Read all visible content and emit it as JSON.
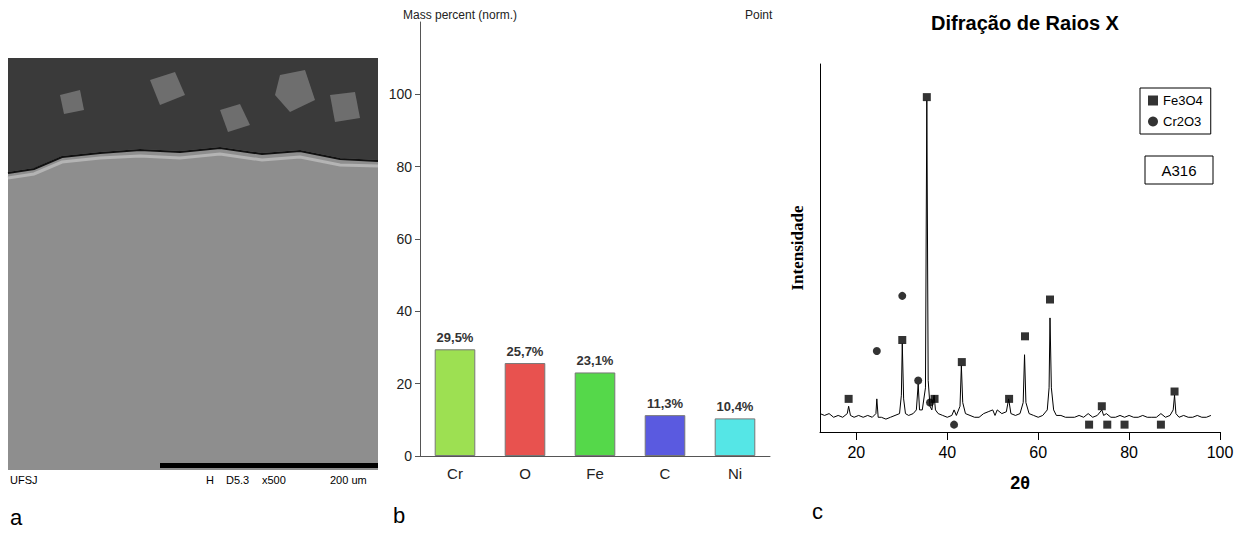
{
  "micrograph": {
    "panel_label": "a",
    "info": [
      "UFSJ",
      "H",
      "D5.3",
      "x500",
      "200 um"
    ]
  },
  "chart_data": [
    {
      "type": "bar",
      "panel_label": "b",
      "title": "Mass percent (norm.)",
      "subtitle": "Point",
      "categories": [
        "Cr",
        "O",
        "Fe",
        "C",
        "Ni"
      ],
      "values": [
        29.5,
        25.7,
        23.1,
        11.3,
        10.4
      ],
      "value_labels": [
        "29,5%",
        "25,7%",
        "23,1%",
        "11,3%",
        "10,4%"
      ],
      "colors": [
        "#9de052",
        "#e8524f",
        "#55d84a",
        "#5a5ae0",
        "#55e6e6"
      ],
      "ylim": [
        0,
        120
      ],
      "yticks": [
        0,
        20,
        40,
        60,
        80,
        100
      ],
      "data_labels": true
    },
    {
      "type": "line",
      "panel_label": "c",
      "title": "Difração de Raios X",
      "x_label": "2θ",
      "y_label": "Intensidade",
      "annotation": "A316",
      "legend": "upper right",
      "tick_labels": "x",
      "xlim": [
        12,
        100
      ],
      "xticks": [
        20,
        40,
        60,
        80,
        100
      ],
      "ylim": [
        0,
        100
      ],
      "series": [
        {
          "type": "line",
          "color": "#000000",
          "x": [
            12,
            13,
            14,
            15,
            16,
            17,
            18,
            18.3,
            18.7,
            19.5,
            20.5,
            21.5,
            22.5,
            23.5,
            24.3,
            24.5,
            24.8,
            25.5,
            26.5,
            27.5,
            28.5,
            29.5,
            29.9,
            30.1,
            30.4,
            30.8,
            31.5,
            32.5,
            33.2,
            33.6,
            33.9,
            34.5,
            35.2,
            35.5,
            35.8,
            36.2,
            36.6,
            37.1,
            37.4,
            38,
            39,
            40,
            41,
            41.5,
            42,
            42.8,
            43.1,
            43.4,
            44,
            45,
            46,
            47,
            48,
            49,
            50,
            50.5,
            51,
            52,
            53,
            53.5,
            54,
            55,
            56,
            56.7,
            57,
            57.3,
            58,
            59,
            60,
            61,
            62,
            62.4,
            62.6,
            62.9,
            63.4,
            64,
            65,
            66,
            67,
            68,
            69,
            70,
            71,
            72,
            73,
            74,
            74.4,
            75,
            76,
            77,
            78,
            79,
            80,
            81,
            82,
            83,
            84,
            85,
            86,
            87,
            88,
            89,
            89.7,
            90,
            90.3,
            91,
            92,
            93,
            94,
            95,
            96,
            97,
            98
          ],
          "values": [
            5,
            4.5,
            5,
            4,
            4.5,
            4,
            5,
            7,
            4.5,
            4,
            4.5,
            4,
            4.5,
            4,
            5,
            9,
            4,
            4,
            3.5,
            4,
            4.5,
            5,
            10,
            24,
            9,
            5,
            4.5,
            5,
            6,
            13,
            6,
            6,
            12,
            90,
            14,
            7,
            6,
            10,
            6,
            5,
            4.5,
            4,
            4.5,
            6,
            4.5,
            7,
            18,
            8,
            5,
            4.5,
            4,
            4,
            5,
            5.5,
            6,
            4.5,
            6,
            5,
            5.5,
            9,
            5,
            4.5,
            5,
            8,
            21,
            8,
            5,
            4.5,
            4,
            4.5,
            6,
            12,
            31,
            12,
            6,
            4.5,
            4.5,
            4,
            4,
            4,
            4.5,
            4,
            5,
            4,
            4.5,
            6,
            4.5,
            5,
            4,
            4,
            4.5,
            4,
            4.5,
            4,
            4,
            4.5,
            4,
            4,
            4,
            5,
            4,
            4.5,
            6,
            10,
            5,
            4,
            4.5,
            4,
            4,
            4.5,
            4,
            4,
            4.5
          ]
        },
        {
          "name": "Fe3O4",
          "type": "scatter",
          "marker": "square",
          "color": "#000000",
          "x": [
            18.3,
            30.1,
            35.5,
            37.2,
            43.2,
            53.6,
            57.1,
            62.6,
            71.2,
            74.0,
            75.2,
            79.0,
            87.0,
            90.0
          ],
          "values": [
            9,
            25,
            91,
            9,
            19,
            9,
            26,
            36,
            2,
            7,
            2,
            2,
            2,
            11
          ]
        },
        {
          "name": "Cr2O3",
          "type": "scatter",
          "marker": "circle",
          "color": "#000000",
          "x": [
            24.5,
            30.1,
            33.6,
            36.2,
            41.5
          ],
          "values": [
            22,
            37,
            14,
            8,
            2
          ]
        }
      ]
    }
  ]
}
